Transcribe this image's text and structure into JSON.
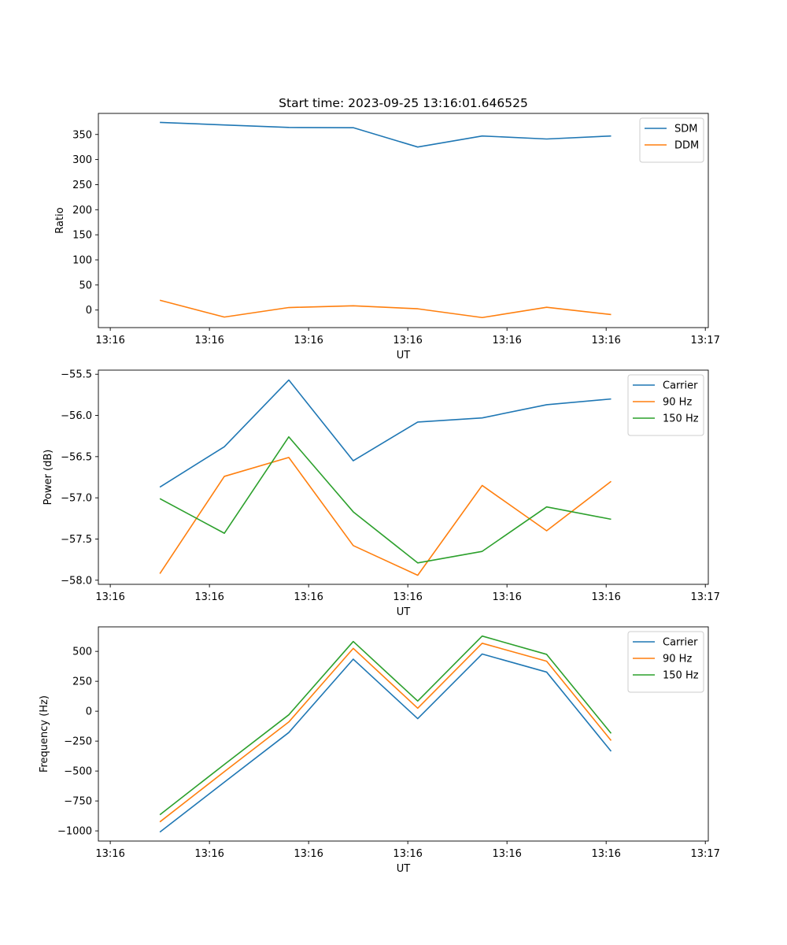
{
  "figure_title": "Start time: 2023-09-25 13:16:01.646525",
  "chart_data": [
    {
      "type": "line",
      "title": "Start time: 2023-09-25 13:16:01.646525",
      "xlabel": "UT",
      "ylabel": "Ratio",
      "x_tick_labels": [
        "13:16",
        "13:16",
        "13:16",
        "13:16",
        "13:16",
        "13:16",
        "13:17"
      ],
      "x_ticks": [
        0,
        1,
        2,
        3,
        4,
        5,
        6
      ],
      "x": [
        0.5,
        1.15,
        1.8,
        2.45,
        3.1,
        3.75,
        4.4,
        5.05
      ],
      "xlim": [
        -0.12,
        6.03
      ],
      "yticks": [
        0,
        50,
        100,
        150,
        200,
        250,
        300,
        350
      ],
      "ylim": [
        -35,
        392
      ],
      "legend_loc": "upper right",
      "series": [
        {
          "name": "SDM",
          "color": "#1f77b4",
          "values": [
            374,
            369,
            364,
            363.5,
            325,
            347,
            341,
            347
          ]
        },
        {
          "name": "DDM",
          "color": "#ff7f0e",
          "values": [
            19.5,
            -14,
            5,
            8.5,
            2.5,
            -15,
            5.5,
            -9
          ]
        }
      ]
    },
    {
      "type": "line",
      "title": "",
      "xlabel": "UT",
      "ylabel": "Power (dB)",
      "x_tick_labels": [
        "13:16",
        "13:16",
        "13:16",
        "13:16",
        "13:16",
        "13:16",
        "13:17"
      ],
      "x_ticks": [
        0,
        1,
        2,
        3,
        4,
        5,
        6
      ],
      "x": [
        0.5,
        1.15,
        1.8,
        2.45,
        3.1,
        3.75,
        4.4,
        5.05
      ],
      "xlim": [
        -0.12,
        6.03
      ],
      "yticks": [
        -55.5,
        -56.0,
        -56.5,
        -57.0,
        -57.5,
        -58.0
      ],
      "ytick_labels": [
        "−55.5",
        "−56.0",
        "−56.5",
        "−57.0",
        "−57.5",
        "−58.0"
      ],
      "ylim": [
        -58.05,
        -55.45
      ],
      "legend_loc": "upper right",
      "series": [
        {
          "name": "Carrier",
          "color": "#1f77b4",
          "values": [
            -56.87,
            -56.38,
            -55.57,
            -56.55,
            -56.08,
            -56.03,
            -55.87,
            -55.8
          ]
        },
        {
          "name": "90 Hz",
          "color": "#ff7f0e",
          "values": [
            -57.92,
            -56.74,
            -56.51,
            -57.58,
            -57.94,
            -56.85,
            -57.4,
            -56.8
          ]
        },
        {
          "name": "150 Hz",
          "color": "#2ca02c",
          "values": [
            -57.01,
            -57.43,
            -56.26,
            -57.17,
            -57.79,
            -57.65,
            -57.11,
            -57.26
          ]
        }
      ]
    },
    {
      "type": "line",
      "title": "",
      "xlabel": "UT",
      "ylabel": "Frequency (Hz)",
      "x_tick_labels": [
        "13:16",
        "13:16",
        "13:16",
        "13:16",
        "13:16",
        "13:16",
        "13:17"
      ],
      "x_ticks": [
        0,
        1,
        2,
        3,
        4,
        5,
        6
      ],
      "x": [
        0.5,
        1.15,
        1.8,
        2.45,
        3.1,
        3.75,
        4.4,
        5.05
      ],
      "xlim": [
        -0.12,
        6.03
      ],
      "yticks": [
        500,
        250,
        0,
        -250,
        -500,
        -750,
        -1000
      ],
      "ytick_labels": [
        "500",
        "250",
        "0",
        "−250",
        "−500",
        "−750",
        "−1000"
      ],
      "ylim": [
        -1085,
        705
      ],
      "legend_loc": "upper right",
      "series": [
        {
          "name": "Carrier",
          "color": "#1f77b4",
          "values": [
            -1010,
            -593,
            -178,
            435,
            -62,
            478,
            327,
            -335
          ]
        },
        {
          "name": "90 Hz",
          "color": "#ff7f0e",
          "values": [
            -925,
            -505,
            -90,
            525,
            25,
            568,
            418,
            -245
          ]
        },
        {
          "name": "150 Hz",
          "color": "#2ca02c",
          "values": [
            -865,
            -445,
            -30,
            583,
            85,
            628,
            475,
            -185
          ]
        }
      ]
    }
  ]
}
